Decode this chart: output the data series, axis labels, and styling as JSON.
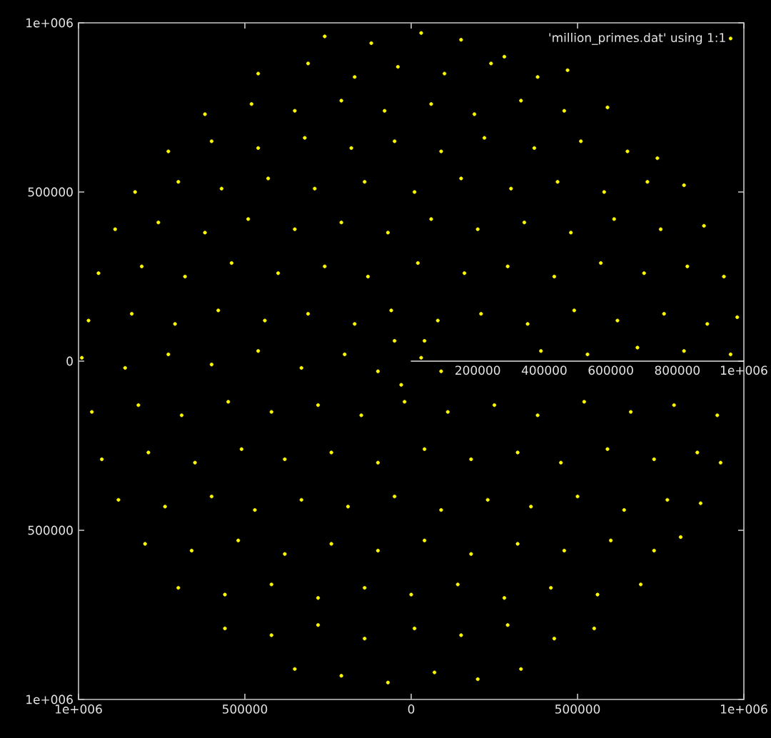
{
  "chart_data": {
    "type": "scatter",
    "xlim": [
      -1000000,
      1000000
    ],
    "ylim": [
      -1000000,
      1000000
    ],
    "xticks": [
      {
        "value": -1000000,
        "label": "1e+006"
      },
      {
        "value": -500000,
        "label": "500000"
      },
      0,
      500000,
      {
        "value": 1000000,
        "label": "1e+006"
      }
    ],
    "yticks": [
      {
        "value": -1000000,
        "label": "1e+006"
      },
      {
        "value": -500000,
        "label": "500000"
      },
      0,
      500000,
      {
        "value": 1000000,
        "label": "1e+006"
      }
    ],
    "legend": "top right",
    "marker": "circle",
    "x": [
      -260000,
      -120000,
      30000,
      150000,
      280000,
      -460000,
      -310000,
      -170000,
      -40000,
      100000,
      240000,
      380000,
      470000,
      -620000,
      -480000,
      -350000,
      -210000,
      -80000,
      60000,
      190000,
      330000,
      460000,
      590000,
      -730000,
      -600000,
      -460000,
      -320000,
      -180000,
      -50000,
      90000,
      220000,
      370000,
      510000,
      650000,
      740000,
      -830000,
      -700000,
      -570000,
      -430000,
      -290000,
      -140000,
      10000,
      150000,
      300000,
      440000,
      580000,
      710000,
      820000,
      -890000,
      -760000,
      -620000,
      -490000,
      -350000,
      -210000,
      -70000,
      60000,
      200000,
      340000,
      480000,
      610000,
      750000,
      880000,
      -940000,
      -810000,
      -680000,
      -540000,
      -400000,
      -260000,
      -130000,
      20000,
      160000,
      290000,
      430000,
      570000,
      700000,
      830000,
      940000,
      -970000,
      -840000,
      -710000,
      -580000,
      -440000,
      -310000,
      -170000,
      -60000,
      80000,
      210000,
      350000,
      490000,
      620000,
      760000,
      890000,
      980000,
      -990000,
      -860000,
      -730000,
      -600000,
      -460000,
      -330000,
      -200000,
      -100000,
      30000,
      90000,
      390000,
      530000,
      680000,
      820000,
      960000,
      40000,
      -50000,
      -30000,
      -960000,
      -820000,
      -690000,
      -550000,
      -420000,
      -280000,
      -150000,
      -20000,
      110000,
      250000,
      380000,
      520000,
      660000,
      790000,
      920000,
      -930000,
      -790000,
      -650000,
      -510000,
      -380000,
      -240000,
      -100000,
      40000,
      180000,
      320000,
      450000,
      590000,
      730000,
      860000,
      930000,
      -880000,
      -740000,
      -600000,
      -470000,
      -330000,
      -190000,
      -50000,
      90000,
      230000,
      360000,
      500000,
      640000,
      770000,
      870000,
      -800000,
      -660000,
      -520000,
      -380000,
      -240000,
      -100000,
      40000,
      180000,
      320000,
      460000,
      600000,
      730000,
      810000,
      -700000,
      -560000,
      -420000,
      -280000,
      -140000,
      0,
      140000,
      280000,
      420000,
      560000,
      690000,
      -560000,
      -420000,
      -280000,
      -140000,
      10000,
      150000,
      290000,
      430000,
      550000,
      -350000,
      -210000,
      -70000,
      70000,
      200000,
      330000
    ],
    "series": [
      {
        "name": "'million_primes.dat' using 1:1",
        "color": "#ffff00",
        "values": [
          960000,
          940000,
          970000,
          950000,
          900000,
          850000,
          880000,
          840000,
          870000,
          850000,
          880000,
          840000,
          860000,
          730000,
          760000,
          740000,
          770000,
          740000,
          760000,
          730000,
          770000,
          740000,
          750000,
          620000,
          650000,
          630000,
          660000,
          630000,
          650000,
          620000,
          660000,
          630000,
          650000,
          620000,
          600000,
          500000,
          530000,
          510000,
          540000,
          510000,
          530000,
          500000,
          540000,
          510000,
          530000,
          500000,
          530000,
          520000,
          390000,
          410000,
          380000,
          420000,
          390000,
          410000,
          380000,
          420000,
          390000,
          410000,
          380000,
          420000,
          390000,
          400000,
          260000,
          280000,
          250000,
          290000,
          260000,
          280000,
          250000,
          290000,
          260000,
          280000,
          250000,
          290000,
          260000,
          280000,
          250000,
          120000,
          140000,
          110000,
          150000,
          120000,
          140000,
          110000,
          150000,
          120000,
          140000,
          110000,
          150000,
          120000,
          140000,
          110000,
          130000,
          10000,
          -20000,
          20000,
          -10000,
          30000,
          -20000,
          20000,
          -30000,
          10000,
          -30000,
          30000,
          20000,
          40000,
          30000,
          20000,
          60000,
          60000,
          -70000,
          -150000,
          -130000,
          -160000,
          -120000,
          -150000,
          -130000,
          -160000,
          -120000,
          -150000,
          -130000,
          -160000,
          -120000,
          -150000,
          -130000,
          -160000,
          -290000,
          -270000,
          -300000,
          -260000,
          -290000,
          -270000,
          -300000,
          -260000,
          -290000,
          -270000,
          -300000,
          -260000,
          -290000,
          -270000,
          -300000,
          -410000,
          -430000,
          -400000,
          -440000,
          -410000,
          -430000,
          -400000,
          -440000,
          -410000,
          -430000,
          -400000,
          -440000,
          -410000,
          -420000,
          -540000,
          -560000,
          -530000,
          -570000,
          -540000,
          -560000,
          -530000,
          -570000,
          -540000,
          -560000,
          -530000,
          -560000,
          -520000,
          -670000,
          -690000,
          -660000,
          -700000,
          -670000,
          -690000,
          -660000,
          -700000,
          -670000,
          -690000,
          -660000,
          -790000,
          -810000,
          -780000,
          -820000,
          -790000,
          -810000,
          -780000,
          -820000,
          -790000,
          -910000,
          -930000,
          -950000,
          -920000,
          -940000,
          -910000
        ]
      },
      {
        "type": "line",
        "marker": "none",
        "color": "#e0e0e0",
        "x": [
          0,
          1000000
        ],
        "values": [
          0,
          0
        ]
      }
    ],
    "annotations": [
      {
        "text": "200000",
        "x": 200000,
        "y": 0
      },
      {
        "text": "400000",
        "x": 400000,
        "y": 0
      },
      {
        "text": "600000",
        "x": 600000,
        "y": 0
      },
      {
        "text": "800000",
        "x": 800000,
        "y": 0
      },
      {
        "text": "1e+006",
        "x": 1000000,
        "y": 0
      }
    ]
  }
}
